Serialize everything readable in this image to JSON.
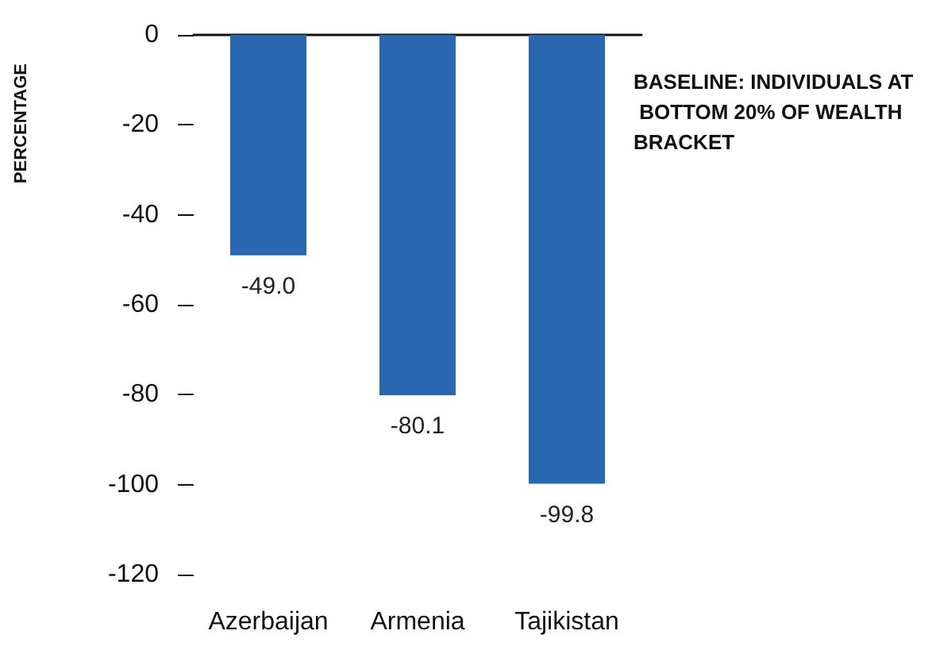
{
  "chart_data": {
    "type": "bar",
    "categories": [
      "Azerbaijan",
      "Armenia",
      "Tajikistan"
    ],
    "values": [
      -49.0,
      -80.1,
      -99.8
    ],
    "value_labels": [
      "-49.0",
      "-80.1",
      "-99.8"
    ],
    "color": "#2a67b1",
    "ylabel": "PERCENTAGE",
    "annotations": [
      "BASELINE: INDIVIDUALS AT BOTTOM 20% OF WEALTH BRACKET"
    ],
    "ylim": [
      -120,
      0
    ],
    "yticks": [
      0,
      -20,
      -40,
      -60,
      -80,
      -100,
      -120
    ]
  }
}
